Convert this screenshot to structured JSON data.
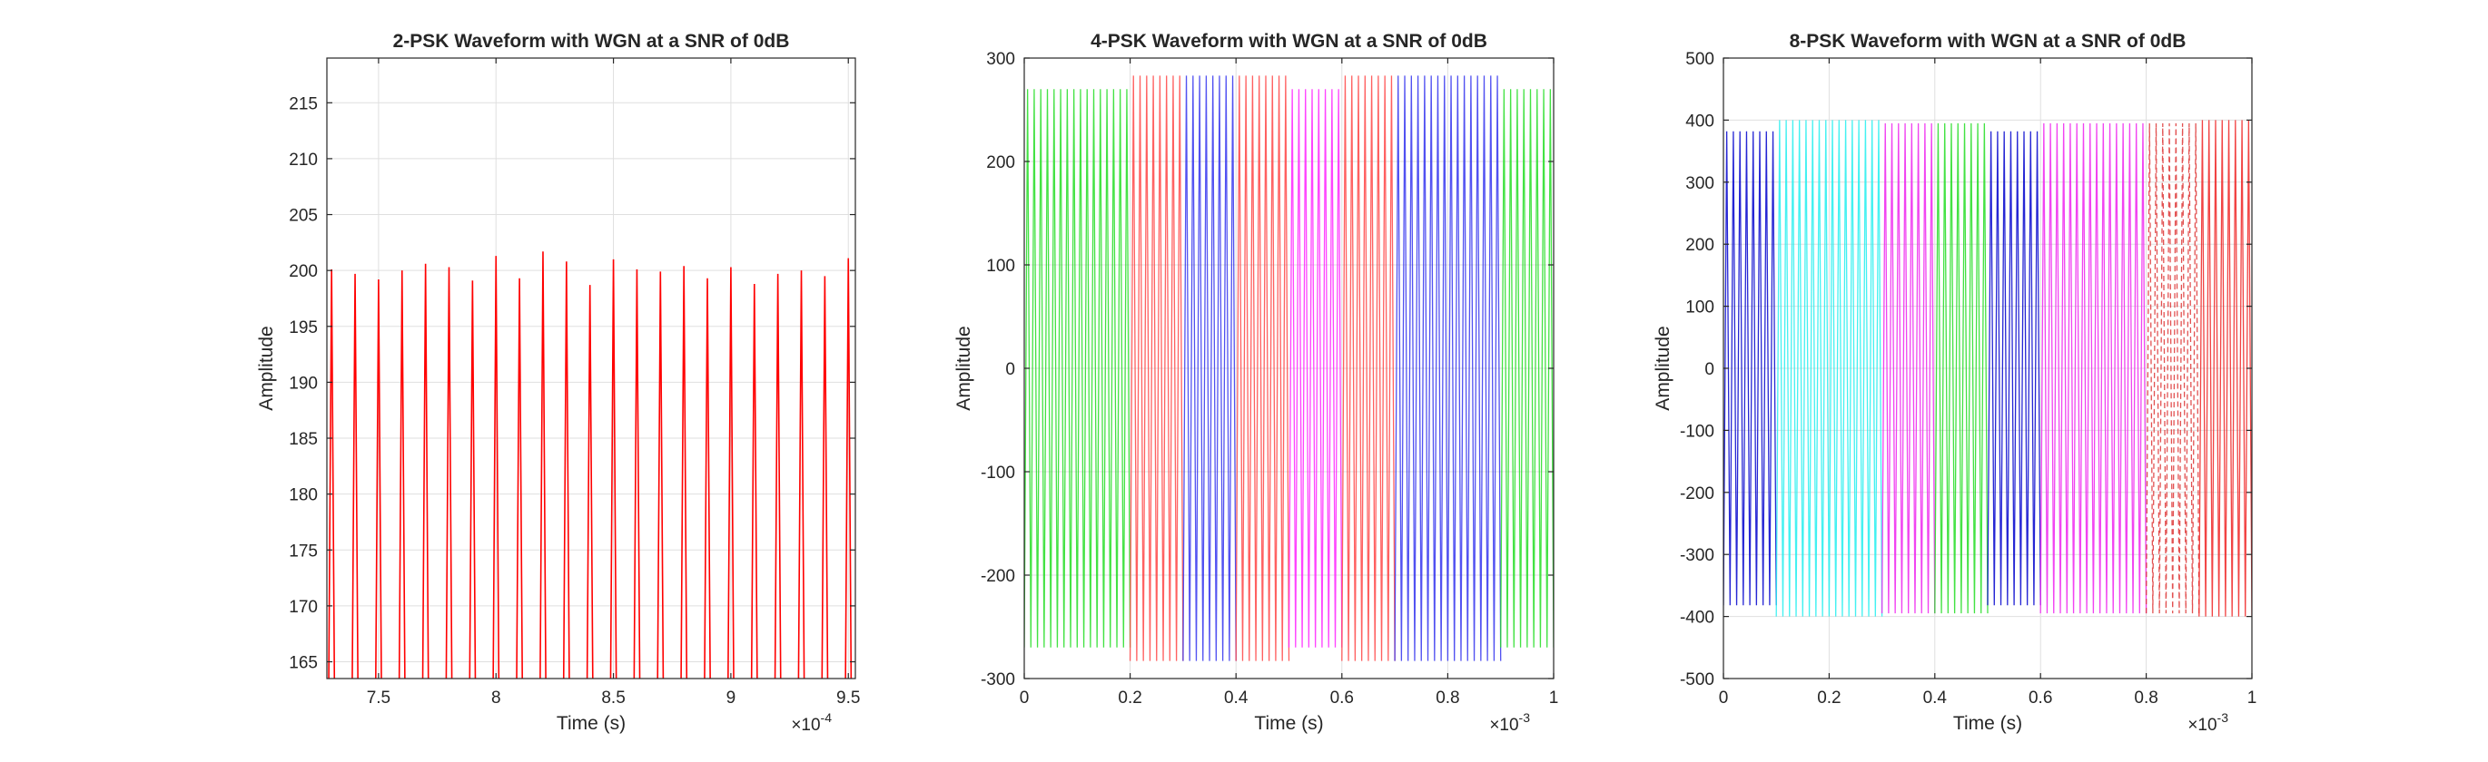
{
  "chart_data": [
    {
      "type": "line",
      "title": "2-PSK Waveform with WGN at a SNR of 0dB",
      "xlabel": "Time (s)",
      "ylabel": "Amplitude",
      "x_exponent": "×10",
      "x_exponent_power": "-4",
      "xlim": [
        7.28,
        9.53
      ],
      "ylim": [
        163.5,
        219
      ],
      "xticks": [
        7.5,
        8,
        8.5,
        9,
        9.5
      ],
      "xtick_labels": [
        "7.5",
        "8",
        "8.5",
        "9",
        "9.5"
      ],
      "yticks": [
        165,
        170,
        175,
        180,
        185,
        190,
        195,
        200,
        205,
        210,
        215
      ],
      "ytick_labels": [
        "165",
        "170",
        "175",
        "180",
        "185",
        "190",
        "195",
        "200",
        "205",
        "210",
        "215"
      ],
      "grid": true,
      "series": [
        {
          "color": "#ff0000",
          "peaks_x": [
            7.3,
            7.4,
            7.5,
            7.6,
            7.7,
            7.8,
            7.9,
            8.0,
            8.1,
            8.2,
            8.3,
            8.4,
            8.5,
            8.6,
            8.7,
            8.8,
            8.9,
            9.0,
            9.1,
            9.2,
            9.3,
            9.4,
            9.5
          ],
          "peaks_y": [
            200.1,
            199.7,
            199.2,
            200.0,
            200.6,
            200.3,
            199.1,
            201.3,
            199.3,
            201.7,
            200.8,
            198.7,
            201.0,
            200.1,
            199.9,
            200.4,
            199.3,
            200.3,
            198.8,
            199.7,
            200.0,
            199.5,
            201.1
          ]
        }
      ]
    },
    {
      "type": "line",
      "title": "4-PSK Waveform with WGN at a SNR of 0dB",
      "xlabel": "Time (s)",
      "ylabel": "Amplitude",
      "x_exponent": "×10",
      "x_exponent_power": "-3",
      "xlim": [
        0,
        1
      ],
      "ylim": [
        -300,
        300
      ],
      "xticks": [
        0,
        0.2,
        0.4,
        0.6,
        0.8,
        1
      ],
      "xtick_labels": [
        "0",
        "0.2",
        "0.4",
        "0.6",
        "0.8",
        "1"
      ],
      "yticks": [
        -300,
        -200,
        -100,
        0,
        100,
        200,
        300
      ],
      "ytick_labels": [
        "-300",
        "-200",
        "-100",
        "0",
        "100",
        "200",
        "300"
      ],
      "grid": true,
      "segments": [
        {
          "x_start": 0.0,
          "x_end": 0.2,
          "amplitude": 270,
          "color": "#22dd22"
        },
        {
          "x_start": 0.2,
          "x_end": 0.3,
          "amplitude": 283,
          "color": "#ff4444"
        },
        {
          "x_start": 0.3,
          "x_end": 0.4,
          "amplitude": 283,
          "color": "#3333ee"
        },
        {
          "x_start": 0.4,
          "x_end": 0.5,
          "amplitude": 283,
          "color": "#ff4444"
        },
        {
          "x_start": 0.5,
          "x_end": 0.6,
          "amplitude": 270,
          "color": "#ff22ff"
        },
        {
          "x_start": 0.6,
          "x_end": 0.7,
          "amplitude": 283,
          "color": "#ff4444"
        },
        {
          "x_start": 0.7,
          "x_end": 0.9,
          "amplitude": 283,
          "color": "#3333ee"
        },
        {
          "x_start": 0.9,
          "x_end": 1.0,
          "amplitude": 270,
          "color": "#22dd22"
        }
      ]
    },
    {
      "type": "line",
      "title": "8-PSK Waveform with WGN at a SNR of 0dB",
      "xlabel": "Time (s)",
      "ylabel": "Amplitude",
      "x_exponent": "×10",
      "x_exponent_power": "-3",
      "xlim": [
        0,
        1
      ],
      "ylim": [
        -500,
        500
      ],
      "xticks": [
        0,
        0.2,
        0.4,
        0.6,
        0.8,
        1
      ],
      "xtick_labels": [
        "0",
        "0.2",
        "0.4",
        "0.6",
        "0.8",
        "1"
      ],
      "yticks": [
        -500,
        -400,
        -300,
        -200,
        -100,
        0,
        100,
        200,
        300,
        400,
        500
      ],
      "ytick_labels": [
        "-500",
        "-400",
        "-300",
        "-200",
        "-100",
        "0",
        "100",
        "200",
        "300",
        "400",
        "500"
      ],
      "grid": true,
      "segments": [
        {
          "x_start": 0.0,
          "x_end": 0.1,
          "amplitude": 382,
          "color": "#0000cc"
        },
        {
          "x_start": 0.1,
          "x_end": 0.3,
          "amplitude": 400,
          "color": "#22eeee"
        },
        {
          "x_start": 0.3,
          "x_end": 0.4,
          "amplitude": 395,
          "color": "#ee22ee"
        },
        {
          "x_start": 0.4,
          "x_end": 0.5,
          "amplitude": 395,
          "color": "#22dd22"
        },
        {
          "x_start": 0.5,
          "x_end": 0.6,
          "amplitude": 382,
          "color": "#0000cc"
        },
        {
          "x_start": 0.6,
          "x_end": 0.8,
          "amplitude": 395,
          "color": "#ee22ee"
        },
        {
          "x_start": 0.8,
          "x_end": 0.9,
          "amplitude": 395,
          "color": "#dd3333",
          "dashed": true
        },
        {
          "x_start": 0.9,
          "x_end": 1.0,
          "amplitude": 400,
          "color": "#ee2222"
        }
      ]
    }
  ]
}
